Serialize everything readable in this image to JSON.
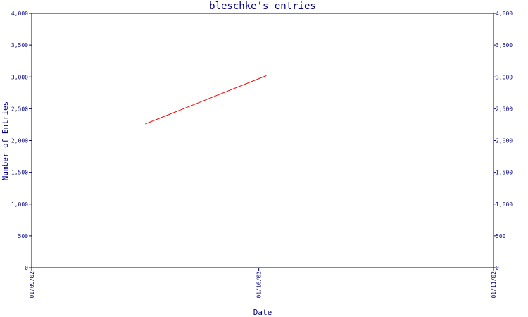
{
  "colors": {
    "axis": "#000080",
    "text": "#000080",
    "series": "#ff0000",
    "background": "#ffffff"
  },
  "chart_data": {
    "type": "line",
    "title": "bleschke's entries",
    "xlabel": "Date",
    "ylabel": "Number of Entries",
    "ylim": [
      0,
      4000
    ],
    "yticks": [
      0,
      500,
      1000,
      1500,
      2000,
      2500,
      3000,
      3500,
      4000
    ],
    "ytick_labels": [
      "0",
      "500",
      "1,000",
      "1,500",
      "2,000",
      "2,500",
      "3,000",
      "3,500",
      "4,000"
    ],
    "xlim": [
      "2002-09-01",
      "2002-11-01"
    ],
    "xticks": [
      "2002-09-01",
      "2002-10-01",
      "2002-11-01"
    ],
    "xtick_labels": [
      "01/09/02",
      "01/10/02",
      "01/11/02"
    ],
    "grid": false,
    "series": [
      {
        "x": [
          "2002-09-16",
          "2002-10-02"
        ],
        "y": [
          2260,
          3020
        ],
        "color": "#ff0000"
      }
    ]
  }
}
